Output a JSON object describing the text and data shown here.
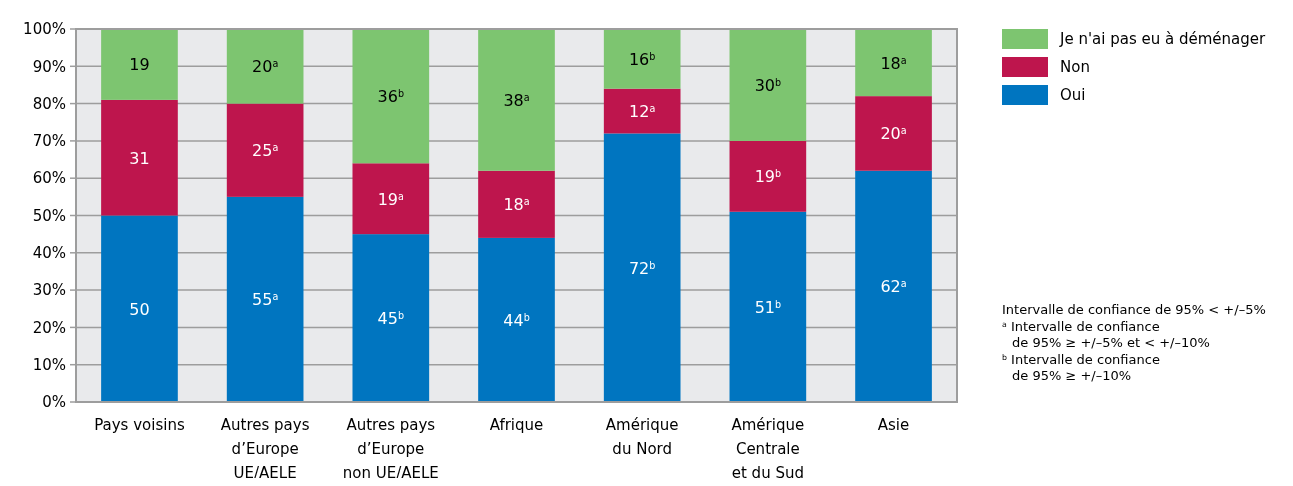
{
  "chart_data": {
    "type": "bar",
    "stacked": true,
    "categories": [
      "Pays voisins",
      "Autres pays\nd’Europe\nUE/AELE",
      "Autres pays\nd’Europe\nnon UE/AELE",
      "Afrique",
      "Amérique\ndu Nord",
      "Amérique\nCentrale\net du Sud",
      "Asie"
    ],
    "series": [
      {
        "name": "Oui",
        "color": "#0075c0",
        "values": [
          50,
          55,
          45,
          44,
          72,
          51,
          62
        ],
        "value_labels": [
          "50",
          "55$^{a}$",
          "45$^{b}$",
          "44$^{b}$",
          "72$^{b}$",
          "51$^{b}$",
          "62$^{a}$"
        ]
      },
      {
        "name": "Non",
        "color": "#be154d",
        "values": [
          31,
          25,
          19,
          18,
          12,
          19,
          20
        ],
        "value_labels": [
          "31",
          "25$^{a}$",
          "19$^{a}$",
          "18$^{a}$",
          "12$^{a}$",
          "19$^{b}$",
          "20$^{a}$"
        ]
      },
      {
        "name": "Je n'ai pas eu à déménager",
        "color": "#7dc570",
        "values": [
          19,
          20,
          36,
          38,
          16,
          30,
          18
        ],
        "value_labels": [
          "19",
          "20$^{a}$",
          "36$^{b}$",
          "38$^{a}$",
          "16$^{b}$",
          "30$^{b}$",
          "18$^{a}$"
        ]
      }
    ],
    "ylim": [
      0,
      100
    ],
    "yticks": [
      {
        "value": 0,
        "label": "0%"
      },
      {
        "value": 10,
        "label": "10%"
      },
      {
        "value": 20,
        "label": "20%"
      },
      {
        "value": 30,
        "label": "30%"
      },
      {
        "value": 40,
        "label": "40%"
      },
      {
        "value": 50,
        "label": "50%"
      },
      {
        "value": 60,
        "label": "60%"
      },
      {
        "value": 70,
        "label": "70%"
      },
      {
        "value": 80,
        "label": "80%"
      },
      {
        "value": 90,
        "label": "90%"
      },
      {
        "value": 100,
        "label": "100%"
      }
    ],
    "grid": "y",
    "legend": "top right",
    "annotations": [
      "Intervalle de confiance de 95% < +/–5%",
      "$^{a}$ Intervalle de confiance\nde 95% ≥ +/–5% et < +/–10%",
      "$^{b}$ Intervalle de confiance\nde 95% ≥ +/–10%"
    ]
  }
}
